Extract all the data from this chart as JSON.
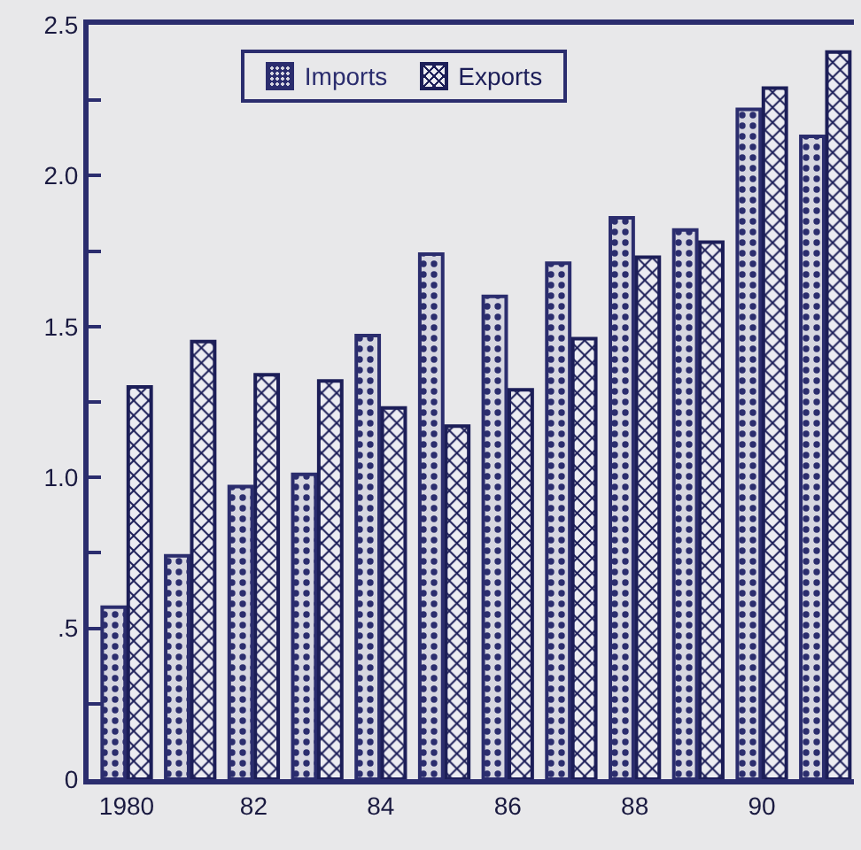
{
  "chart_data": {
    "type": "bar",
    "categories": [
      "1980",
      null,
      "82",
      null,
      "84",
      null,
      "86",
      null,
      "88",
      null,
      "90",
      null
    ],
    "series": [
      {
        "name": "Imports",
        "color": "#2b2d6e",
        "values": [
          0.57,
          0.74,
          0.97,
          1.01,
          1.47,
          1.74,
          1.6,
          1.71,
          1.86,
          1.82,
          2.22,
          2.13
        ]
      },
      {
        "name": "Exports",
        "color": "#1c1e58",
        "values": [
          1.3,
          1.45,
          1.34,
          1.32,
          1.23,
          1.17,
          1.29,
          1.46,
          1.73,
          1.78,
          2.29,
          2.41
        ]
      }
    ],
    "ylim": [
      0,
      2.5
    ],
    "yticks": [
      0,
      {
        "value": 0.25,
        "label": null
      },
      {
        "value": 0.5,
        "label": ".5"
      },
      {
        "value": 0.75,
        "label": null
      },
      {
        "value": 1,
        "label": "1.0"
      },
      {
        "value": 1.25,
        "label": null
      },
      1.5,
      {
        "value": 1.75,
        "label": null
      },
      {
        "value": 2,
        "label": "2.0"
      },
      {
        "value": 2.25,
        "label": null
      },
      2.5
    ],
    "grid": false,
    "legend": "top"
  }
}
